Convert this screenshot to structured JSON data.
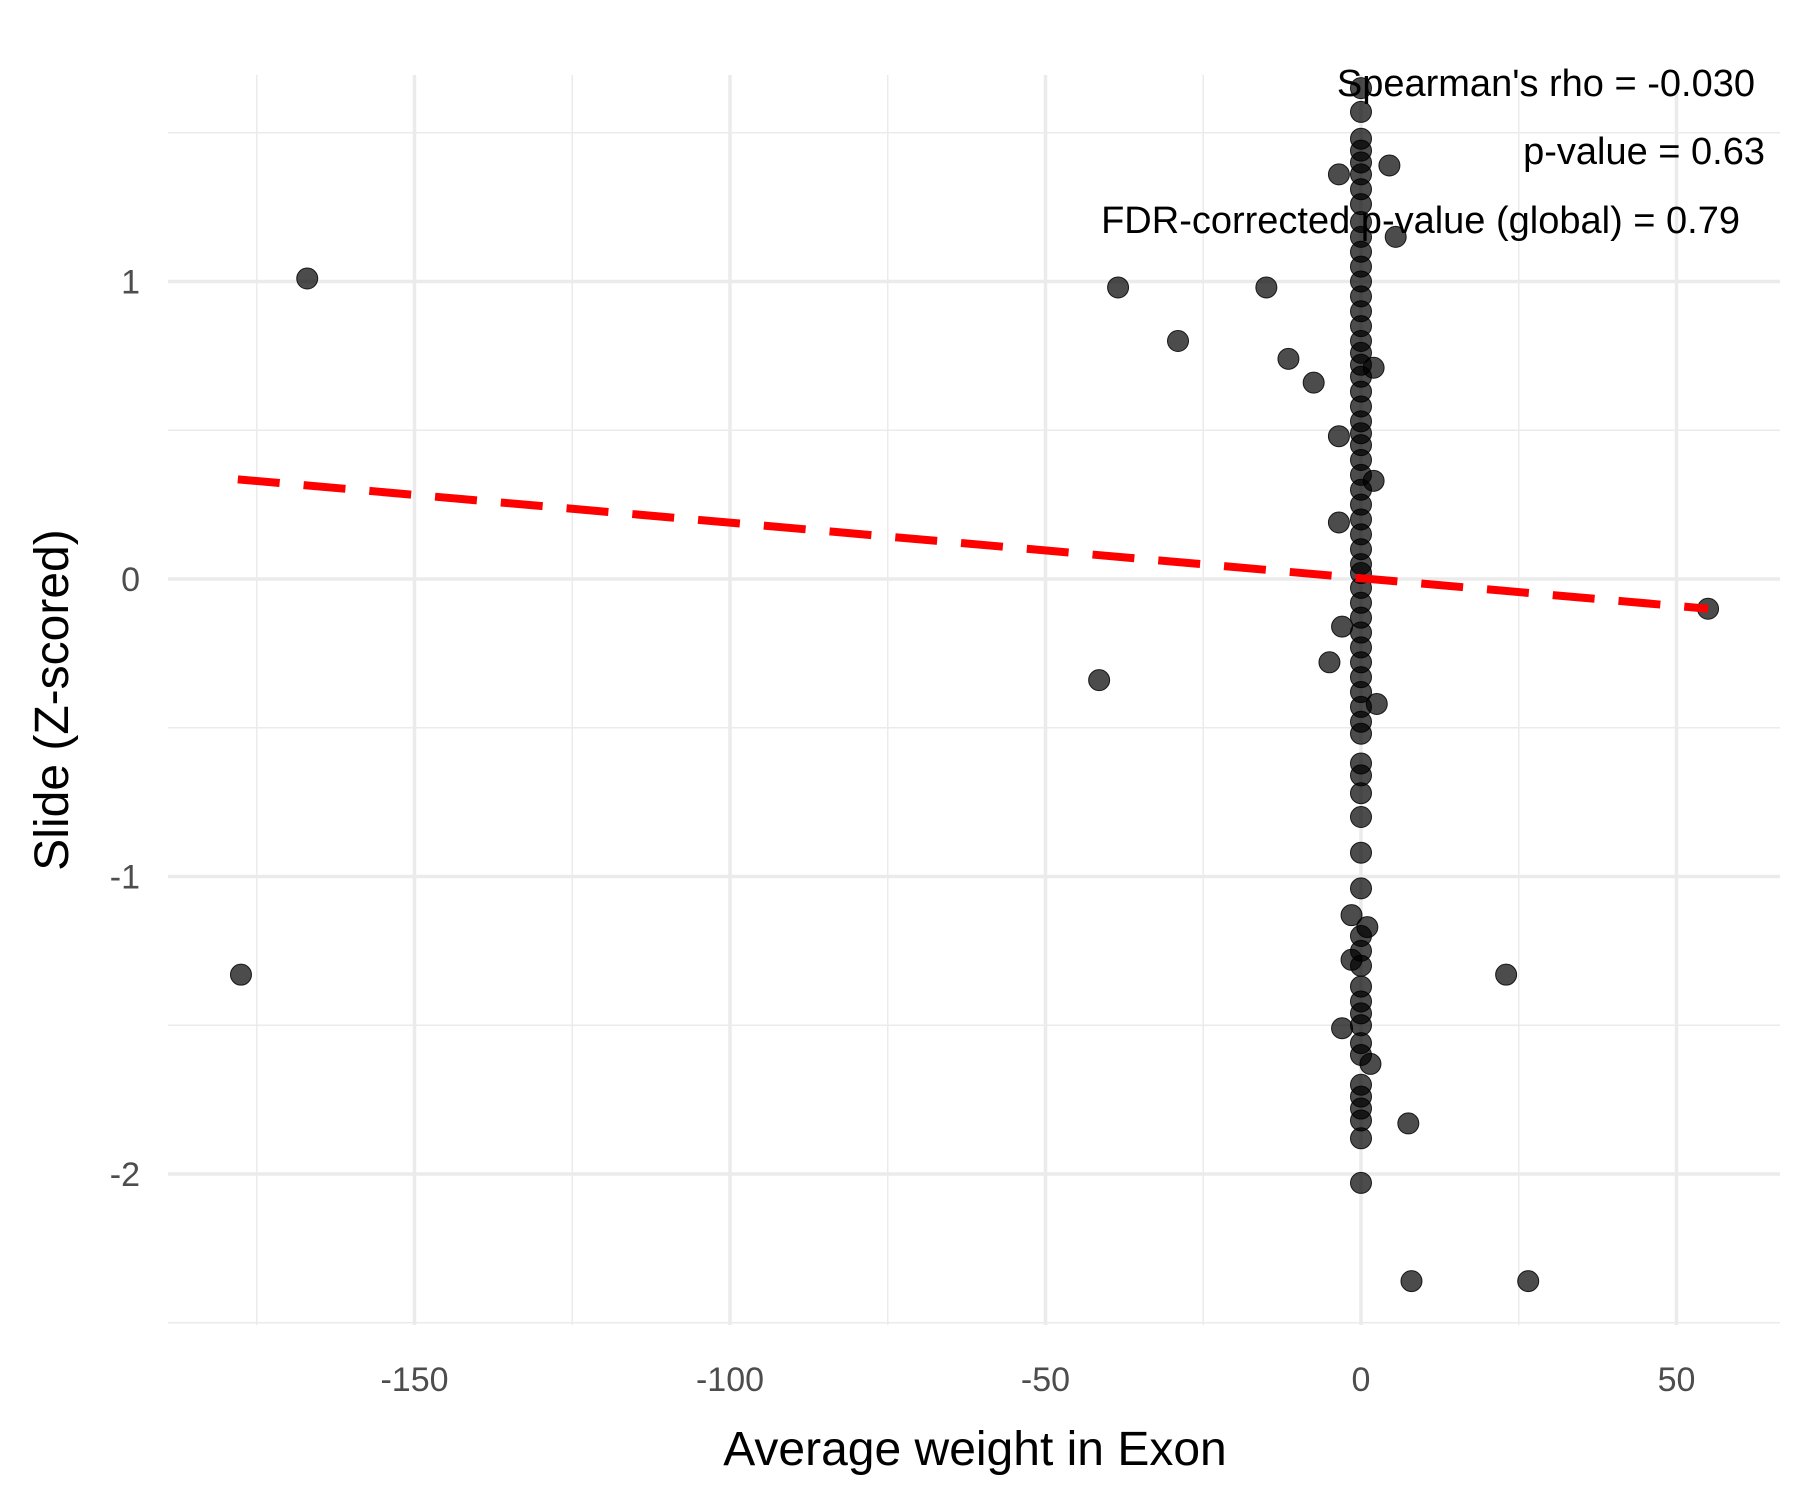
{
  "chart_data": {
    "type": "scatter",
    "title": "",
    "xlabel": "Average weight in Exon",
    "ylabel": "Slide (Z-scored)",
    "xlim": [
      -187,
      66
    ],
    "ylim": [
      -2.55,
      1.75
    ],
    "x_ticks": [
      -150,
      -100,
      -50,
      0,
      50
    ],
    "x_tick_labels": [
      "-150",
      "-100",
      "-50",
      "0",
      "50"
    ],
    "y_ticks": [
      -2,
      -1,
      0,
      1
    ],
    "y_tick_labels": [
      "-2",
      "-1",
      "0",
      "1"
    ],
    "grid": true,
    "legend": "none",
    "annotations": [
      "Spearman's rho = -0.030",
      "p-value = 0.63",
      "FDR-corrected p-value (global) = 0.79"
    ],
    "trend_line": {
      "style": "dashed",
      "color": "#ff0000",
      "x": [
        -178,
        55
      ],
      "y": [
        0.335,
        -0.1
      ]
    },
    "point_color": "#000000",
    "point_opacity": 0.7,
    "points": [
      [
        -167,
        1.01
      ],
      [
        -177.5,
        -1.33
      ],
      [
        -38.5,
        0.98
      ],
      [
        -15,
        0.98
      ],
      [
        -29,
        0.8
      ],
      [
        -11.5,
        0.74
      ],
      [
        -7.5,
        0.66
      ],
      [
        -3.5,
        0.48
      ],
      [
        -3.5,
        1.36
      ],
      [
        4.5,
        1.39
      ],
      [
        5.5,
        1.15
      ],
      [
        2,
        0.71
      ],
      [
        2,
        0.33
      ],
      [
        -3.5,
        0.19
      ],
      [
        -41.5,
        -0.34
      ],
      [
        -5,
        -0.28
      ],
      [
        -3,
        -0.16
      ],
      [
        2.5,
        -0.42
      ],
      [
        -1.5,
        -1.13
      ],
      [
        1,
        -1.17
      ],
      [
        -1.5,
        -1.28
      ],
      [
        -3,
        -1.51
      ],
      [
        1.5,
        -1.63
      ],
      [
        23,
        -1.33
      ],
      [
        7.5,
        -1.83
      ],
      [
        8,
        -2.36
      ],
      [
        26.5,
        -2.36
      ],
      [
        55,
        -0.1
      ],
      [
        0,
        1.65
      ],
      [
        0,
        1.57
      ],
      [
        0,
        1.48
      ],
      [
        0,
        1.44
      ],
      [
        0,
        1.4
      ],
      [
        0,
        1.36
      ],
      [
        0,
        1.31
      ],
      [
        0,
        1.26
      ],
      [
        0,
        1.2
      ],
      [
        0,
        1.15
      ],
      [
        0,
        1.1
      ],
      [
        0,
        1.05
      ],
      [
        0,
        1.0
      ],
      [
        0,
        0.95
      ],
      [
        0,
        0.9
      ],
      [
        0,
        0.85
      ],
      [
        0,
        0.8
      ],
      [
        0,
        0.76
      ],
      [
        0,
        0.72
      ],
      [
        0,
        0.68
      ],
      [
        0,
        0.63
      ],
      [
        0,
        0.58
      ],
      [
        0,
        0.53
      ],
      [
        0,
        0.49
      ],
      [
        0,
        0.45
      ],
      [
        0,
        0.4
      ],
      [
        0,
        0.35
      ],
      [
        0,
        0.3
      ],
      [
        0,
        0.25
      ],
      [
        0,
        0.2
      ],
      [
        0,
        0.15
      ],
      [
        0,
        0.1
      ],
      [
        0,
        0.05
      ],
      [
        0,
        0.02
      ],
      [
        0,
        -0.03
      ],
      [
        0,
        -0.08
      ],
      [
        0,
        -0.13
      ],
      [
        0,
        -0.18
      ],
      [
        0,
        -0.23
      ],
      [
        0,
        -0.28
      ],
      [
        0,
        -0.33
      ],
      [
        0,
        -0.38
      ],
      [
        0,
        -0.43
      ],
      [
        0,
        -0.48
      ],
      [
        0,
        -0.52
      ],
      [
        0,
        -0.62
      ],
      [
        0,
        -0.66
      ],
      [
        0,
        -0.72
      ],
      [
        0,
        -0.8
      ],
      [
        0,
        -0.92
      ],
      [
        0,
        -1.04
      ],
      [
        0,
        -1.2
      ],
      [
        0,
        -1.25
      ],
      [
        0,
        -1.3
      ],
      [
        0,
        -1.37
      ],
      [
        0,
        -1.42
      ],
      [
        0,
        -1.46
      ],
      [
        0,
        -1.5
      ],
      [
        0,
        -1.56
      ],
      [
        0,
        -1.6
      ],
      [
        0,
        -1.7
      ],
      [
        0,
        -1.74
      ],
      [
        0,
        -1.78
      ],
      [
        0,
        -1.82
      ],
      [
        0,
        -1.88
      ],
      [
        0,
        -2.03
      ]
    ]
  }
}
